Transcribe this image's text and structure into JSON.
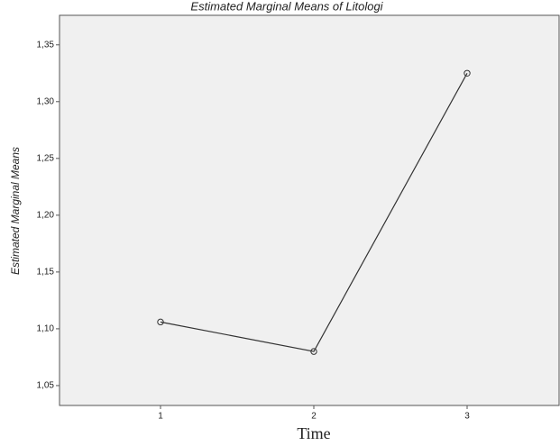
{
  "chart_data": {
    "type": "line",
    "title": "Estimated Marginal Means of Litologi",
    "x_label": "Time",
    "y_label": "Estimated Marginal Means",
    "categories": [
      "1",
      "2",
      "3"
    ],
    "series": [
      {
        "name": "Litologi",
        "color": "#333333",
        "values": [
          1.106,
          1.08,
          1.325
        ]
      }
    ],
    "ylim": [
      1.0325,
      1.376
    ],
    "yticks": [
      {
        "value": 1.05,
        "label": "1,05"
      },
      {
        "value": 1.1,
        "label": "1,10"
      },
      {
        "value": 1.15,
        "label": "1,15"
      },
      {
        "value": 1.2,
        "label": "1,20"
      },
      {
        "value": 1.25,
        "label": "1,25"
      },
      {
        "value": 1.3,
        "label": "1,30"
      },
      {
        "value": 1.35,
        "label": "1,35"
      }
    ]
  }
}
